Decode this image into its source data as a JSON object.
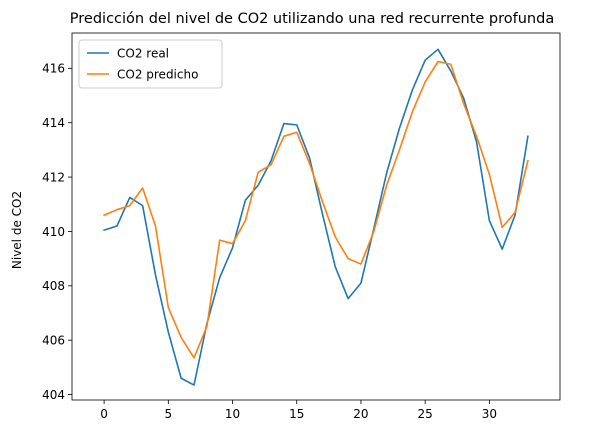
{
  "chart_data": {
    "type": "line",
    "title": "Predicción del nivel de CO2 utilizando una red recurrente profunda",
    "xlabel": "",
    "ylabel": "Nivel de CO2",
    "xlim": [
      -2.5,
      35.5
    ],
    "ylim": [
      403.8,
      417.3
    ],
    "x_ticks": [
      0,
      5,
      10,
      15,
      20,
      25,
      30
    ],
    "y_ticks": [
      404,
      406,
      408,
      410,
      412,
      414,
      416
    ],
    "grid": false,
    "legend_position": "top-left",
    "x": [
      0,
      1,
      2,
      3,
      4,
      5,
      6,
      7,
      8,
      9,
      10,
      11,
      12,
      13,
      14,
      15,
      16,
      17,
      18,
      19,
      20,
      21,
      22,
      23,
      24,
      25,
      26,
      27,
      28,
      29,
      30,
      31,
      32,
      33
    ],
    "series": [
      {
        "name": "CO2 real",
        "color": "#1f77b4",
        "values": [
          410.05,
          410.2,
          411.25,
          410.95,
          408.4,
          406.3,
          404.6,
          404.35,
          406.6,
          408.3,
          409.4,
          411.15,
          411.7,
          412.6,
          413.97,
          413.92,
          412.7,
          410.65,
          408.7,
          407.53,
          408.1,
          410.1,
          412.15,
          413.8,
          415.2,
          416.3,
          416.7,
          415.9,
          414.9,
          413.3,
          410.4,
          409.35,
          410.6,
          413.5
        ]
      },
      {
        "name": "CO2 predicho",
        "color": "#ff7f0e",
        "values": [
          410.6,
          410.8,
          410.95,
          411.6,
          410.2,
          407.2,
          406.1,
          405.35,
          406.5,
          409.68,
          409.55,
          410.4,
          412.18,
          412.45,
          413.5,
          413.65,
          412.5,
          411.1,
          409.8,
          409.0,
          408.8,
          410.0,
          411.7,
          413.0,
          414.4,
          415.5,
          416.25,
          416.15,
          414.7,
          413.5,
          412.1,
          410.15,
          410.7,
          412.6
        ]
      }
    ]
  }
}
